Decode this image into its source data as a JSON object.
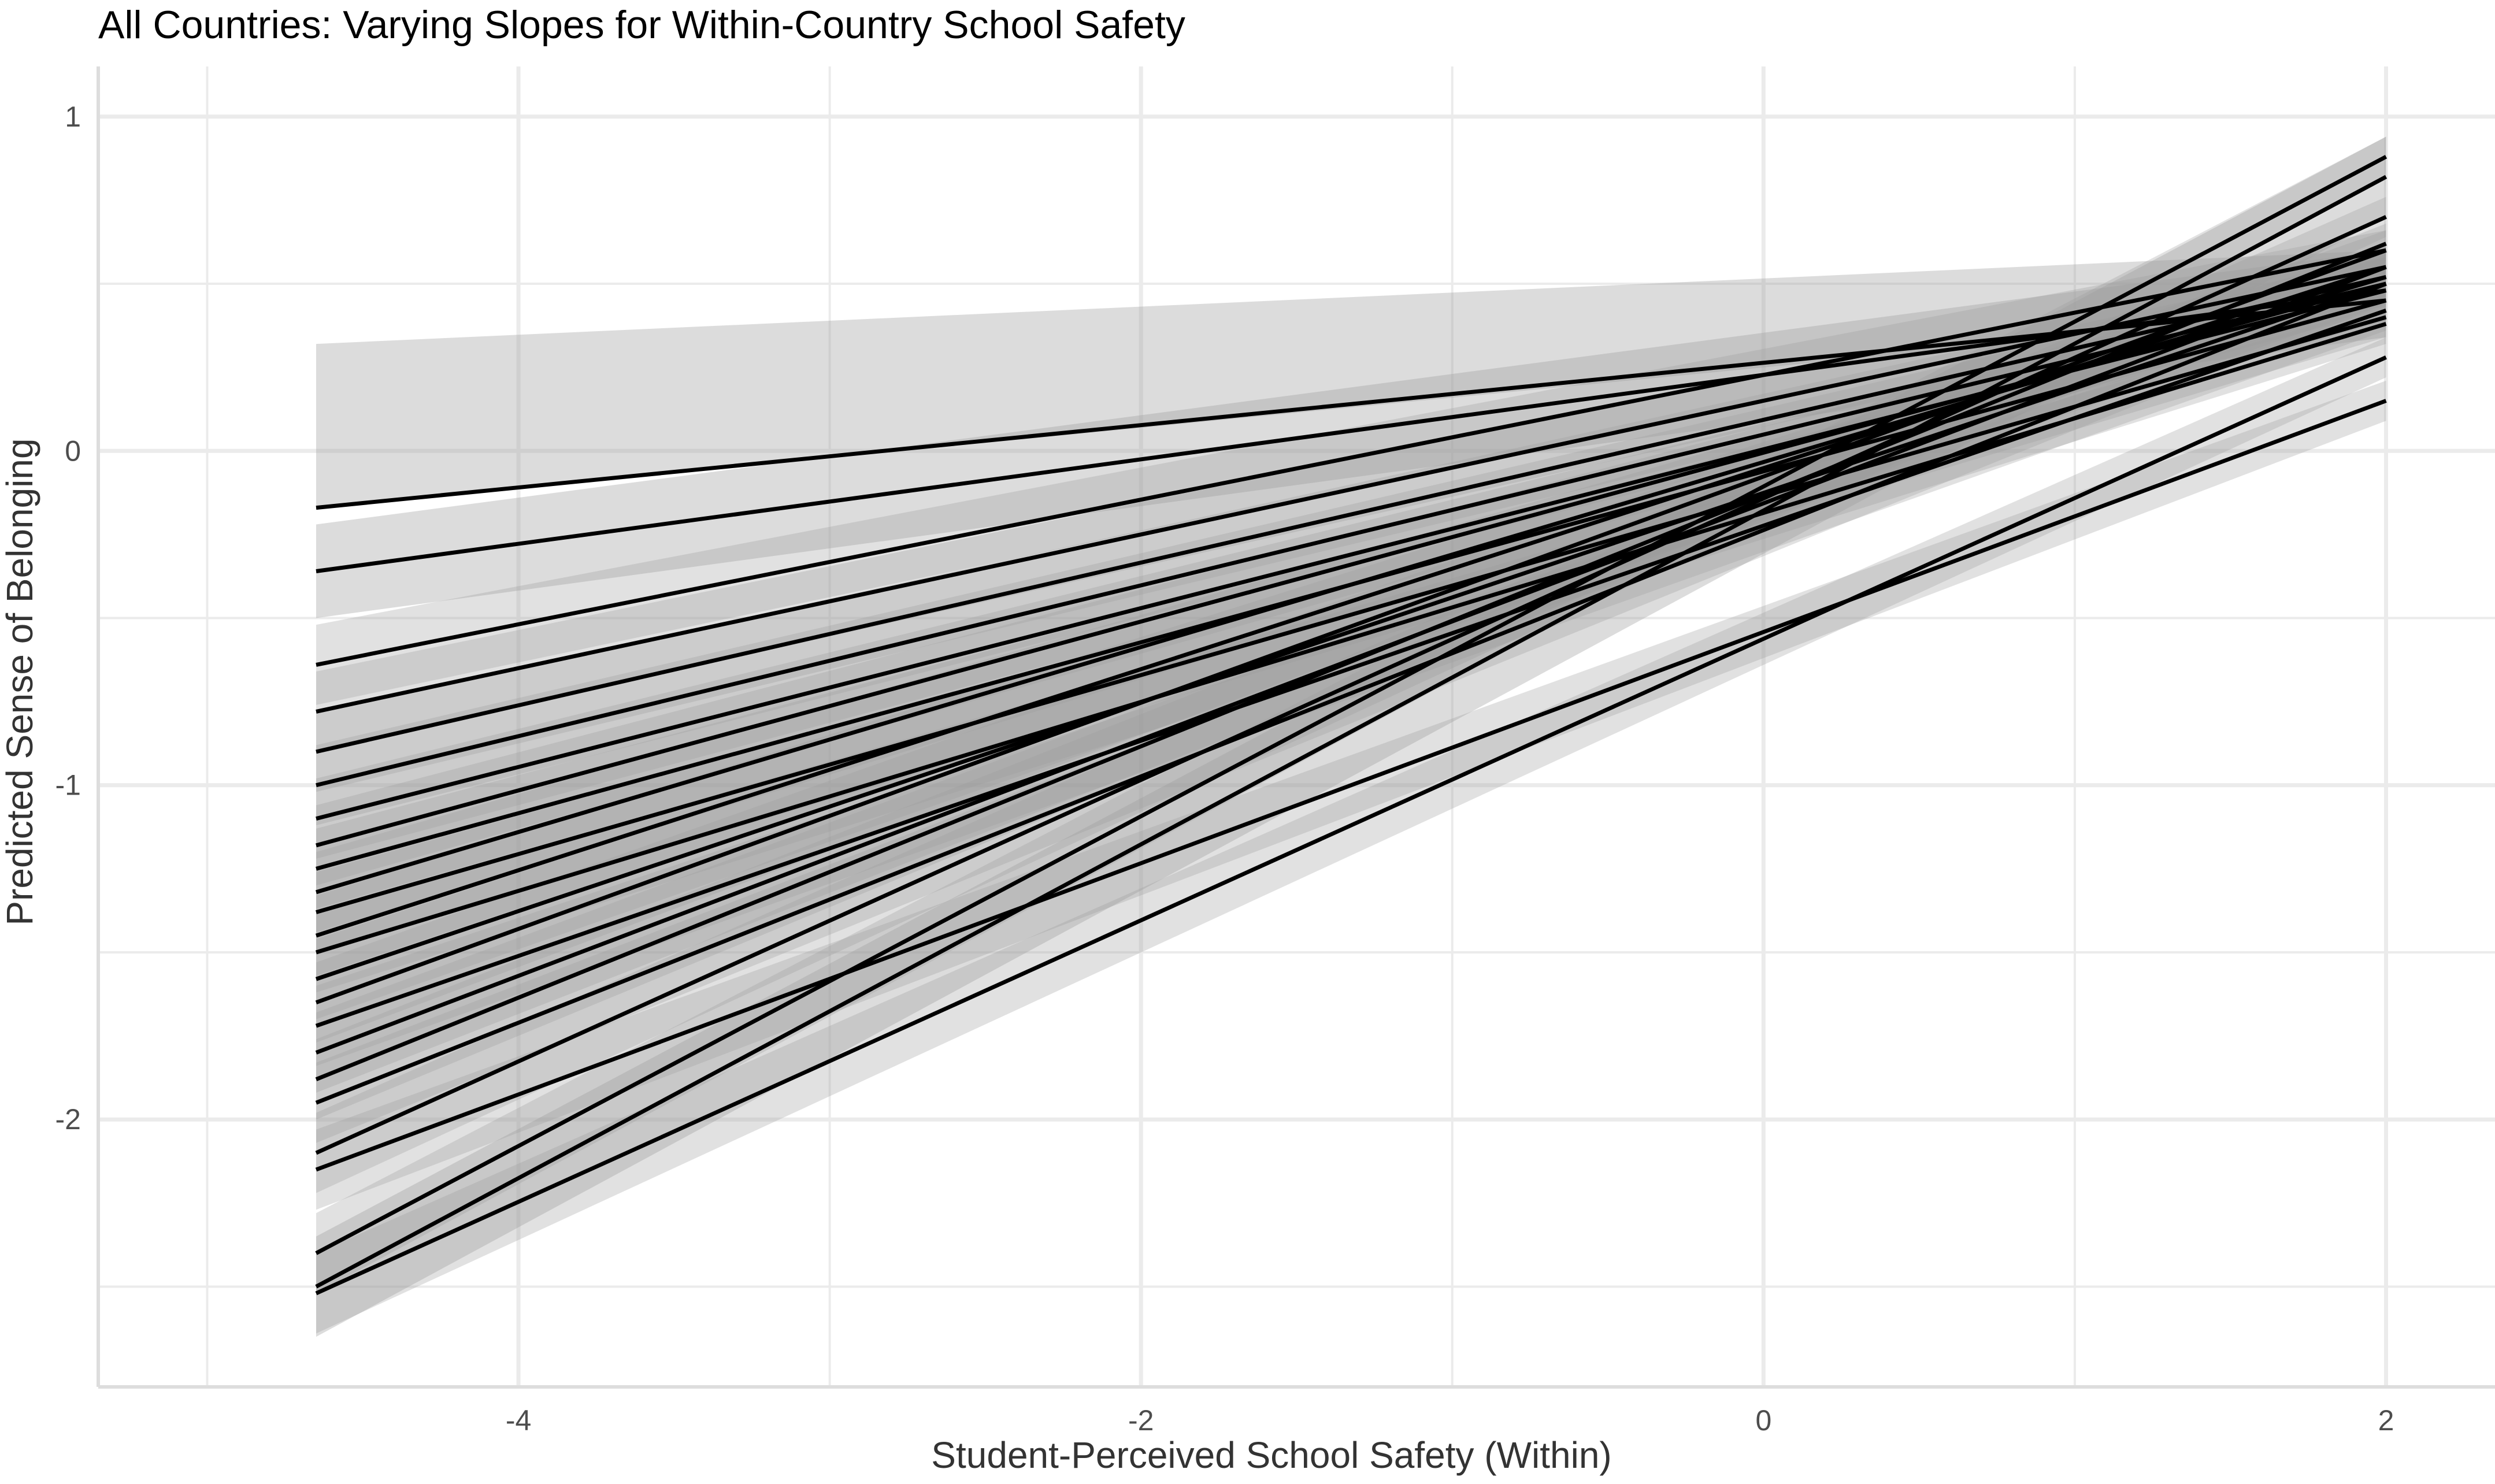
{
  "chart_data": {
    "type": "line",
    "title": "All Countries: Varying Slopes for Within-Country School Safety",
    "xlabel": "Student-Perceived School Safety (Within)",
    "ylabel": "Predicted Sense of Belonging",
    "xlim": [
      -5.35,
      2.35
    ],
    "ylim": [
      -2.8,
      1.15
    ],
    "x_ticks": [
      -4,
      -2,
      0,
      2
    ],
    "x_tick_labels": [
      "-4",
      "-2",
      "0",
      "2"
    ],
    "y_ticks": [
      -2,
      -1,
      0,
      1
    ],
    "y_tick_labels": [
      "-2",
      "-1",
      "0",
      "1"
    ],
    "grid": true,
    "legend": "none",
    "x": [
      -4.65,
      2.0
    ],
    "series": [
      {
        "values": [
          -0.17,
          0.45
        ],
        "ribbon": [
          [
            -0.17,
            0.43
          ],
          [
            0.32,
            0.6
          ]
        ]
      },
      {
        "values": [
          -0.36,
          0.48
        ],
        "ribbon": [
          [
            -0.5,
            0.34
          ],
          [
            -0.22,
            0.6
          ]
        ]
      },
      {
        "values": [
          -0.64,
          0.6
        ]
      },
      {
        "values": [
          -0.78,
          0.55
        ]
      },
      {
        "values": [
          -0.9,
          0.52
        ]
      },
      {
        "values": [
          -1.0,
          0.5
        ]
      },
      {
        "values": [
          -1.1,
          0.48
        ]
      },
      {
        "values": [
          -1.18,
          0.5
        ]
      },
      {
        "values": [
          -1.25,
          0.45
        ]
      },
      {
        "values": [
          -1.32,
          0.52
        ]
      },
      {
        "values": [
          -1.38,
          0.4
        ]
      },
      {
        "values": [
          -1.45,
          0.55
        ]
      },
      {
        "values": [
          -1.5,
          0.38
        ]
      },
      {
        "values": [
          -1.58,
          0.5
        ]
      },
      {
        "values": [
          -1.65,
          0.6
        ]
      },
      {
        "values": [
          -1.72,
          0.42
        ]
      },
      {
        "values": [
          -1.8,
          0.55
        ]
      },
      {
        "values": [
          -1.88,
          0.62
        ]
      },
      {
        "values": [
          -1.95,
          0.5
        ]
      },
      {
        "values": [
          -2.1,
          0.7
        ]
      },
      {
        "values": [
          -2.15,
          0.15
        ]
      },
      {
        "values": [
          -2.4,
          0.88
        ]
      },
      {
        "values": [
          -2.5,
          0.82
        ],
        "ribbon": [
          [
            -2.65,
            0.7
          ],
          [
            -2.35,
            0.94
          ]
        ]
      },
      {
        "values": [
          -2.52,
          0.28
        ]
      }
    ]
  }
}
